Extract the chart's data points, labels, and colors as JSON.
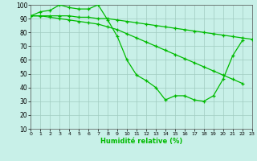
{
  "xlabel": "Humidité relative (%)",
  "bg_color": "#c8f0e8",
  "grid_color": "#a0ccc0",
  "line_color": "#00bb00",
  "xlim": [
    0,
    23
  ],
  "ylim": [
    10,
    100
  ],
  "yticks": [
    10,
    20,
    30,
    40,
    50,
    60,
    70,
    80,
    90,
    100
  ],
  "xticks": [
    0,
    1,
    2,
    3,
    4,
    5,
    6,
    7,
    8,
    9,
    10,
    11,
    12,
    13,
    14,
    15,
    16,
    17,
    18,
    19,
    20,
    21,
    22,
    23
  ],
  "series": [
    {
      "x": [
        0,
        1,
        2,
        3,
        4,
        5,
        6,
        7,
        8,
        9,
        10,
        11,
        12,
        13,
        14,
        15,
        16,
        17,
        18,
        19,
        20,
        21,
        22
      ],
      "y": [
        92,
        95,
        96,
        100,
        98,
        97,
        97,
        100,
        89,
        77,
        60,
        49,
        45,
        40,
        31,
        34,
        34,
        31,
        30,
        34,
        46,
        63,
        74
      ]
    },
    {
      "x": [
        0,
        1,
        2,
        3,
        4,
        5,
        6,
        7,
        8,
        9,
        10,
        11,
        12,
        13,
        14,
        15,
        16,
        17,
        18,
        19,
        20,
        21,
        22,
        23
      ],
      "y": [
        92,
        92,
        92,
        92,
        92,
        91,
        91,
        90,
        90,
        89,
        88,
        87,
        86,
        85,
        84,
        83,
        82,
        81,
        80,
        79,
        78,
        77,
        76,
        75
      ]
    },
    {
      "x": [
        0,
        1,
        2,
        3,
        4,
        5,
        6,
        7,
        8,
        9,
        10,
        11,
        12,
        13,
        14,
        15,
        16,
        17,
        18,
        19,
        20,
        21,
        22
      ],
      "y": [
        92,
        92,
        91,
        90,
        89,
        88,
        87,
        86,
        84,
        82,
        79,
        76,
        73,
        70,
        67,
        64,
        61,
        58,
        55,
        52,
        49,
        46,
        43
      ]
    }
  ]
}
